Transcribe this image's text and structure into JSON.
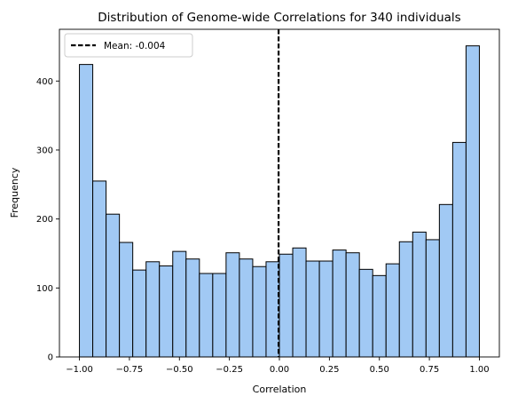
{
  "chart_data": {
    "type": "bar",
    "title": "Distribution of Genome-wide Correlations for 340 individuals",
    "xlabel": "Correlation",
    "ylabel": "Frequency",
    "xlim": [
      -1.1,
      1.1
    ],
    "ylim": [
      0,
      475
    ],
    "xticks": [
      -1.0,
      -0.75,
      -0.5,
      -0.25,
      0.0,
      0.25,
      0.5,
      0.75,
      1.0
    ],
    "xtick_labels": [
      "−1.00",
      "−0.75",
      "−0.50",
      "−0.25",
      "0.00",
      "0.25",
      "0.50",
      "0.75",
      "1.00"
    ],
    "yticks": [
      0,
      100,
      200,
      300,
      400
    ],
    "ytick_labels": [
      "0",
      "100",
      "200",
      "300",
      "400"
    ],
    "bin_range": [
      -1.0,
      1.0
    ],
    "values": [
      424,
      255,
      207,
      166,
      126,
      138,
      132,
      153,
      142,
      121,
      121,
      151,
      142,
      131,
      138,
      149,
      158,
      139,
      139,
      155,
      151,
      127,
      118,
      135,
      167,
      181,
      170,
      221,
      311,
      451
    ],
    "bar_color": "#a1c9f4",
    "edge_color": "#000000",
    "mean_line": {
      "x": -0.004,
      "color": "#000000",
      "style": "dashed"
    },
    "legend": {
      "label": "Mean: -0.004",
      "placement": "upper-left"
    },
    "grid": false
  }
}
